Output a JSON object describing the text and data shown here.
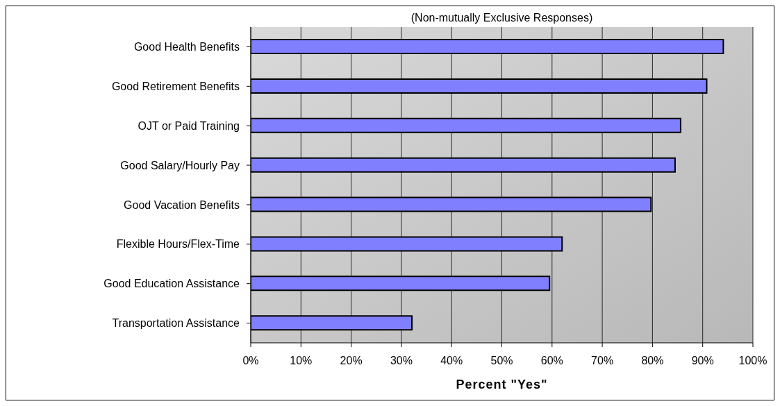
{
  "chart_data": {
    "type": "bar",
    "orientation": "horizontal",
    "title": "(Non-mutually Exclusive Responses)",
    "xlabel": "Percent \"Yes\"",
    "categories": [
      "Good Health Benefits",
      "Good Retirement Benefits",
      "OJT or Paid Training",
      "Good Salary/Hourly Pay",
      "Good Vacation Benefits",
      "Flexible Hours/Flex-Time",
      "Good Education Assistance",
      "Transportation Assistance"
    ],
    "values": [
      94.1,
      90.8,
      85.6,
      84.5,
      79.7,
      62,
      59.5,
      32.1
    ],
    "color": "#8080ff",
    "xlim": [
      0,
      100
    ],
    "xticks": [
      {
        "value": 0,
        "label": "0%"
      },
      {
        "value": 10,
        "label": "10%"
      },
      {
        "value": 20,
        "label": "20%"
      },
      {
        "value": 30,
        "label": "30%"
      },
      {
        "value": 40,
        "label": "40%"
      },
      {
        "value": 50,
        "label": "50%"
      },
      {
        "value": 60,
        "label": "60%"
      },
      {
        "value": 70,
        "label": "70%"
      },
      {
        "value": 80,
        "label": "80%"
      },
      {
        "value": 90,
        "label": "90%"
      },
      {
        "value": 100,
        "label": "100%"
      }
    ],
    "grid": "x",
    "legend": false
  }
}
